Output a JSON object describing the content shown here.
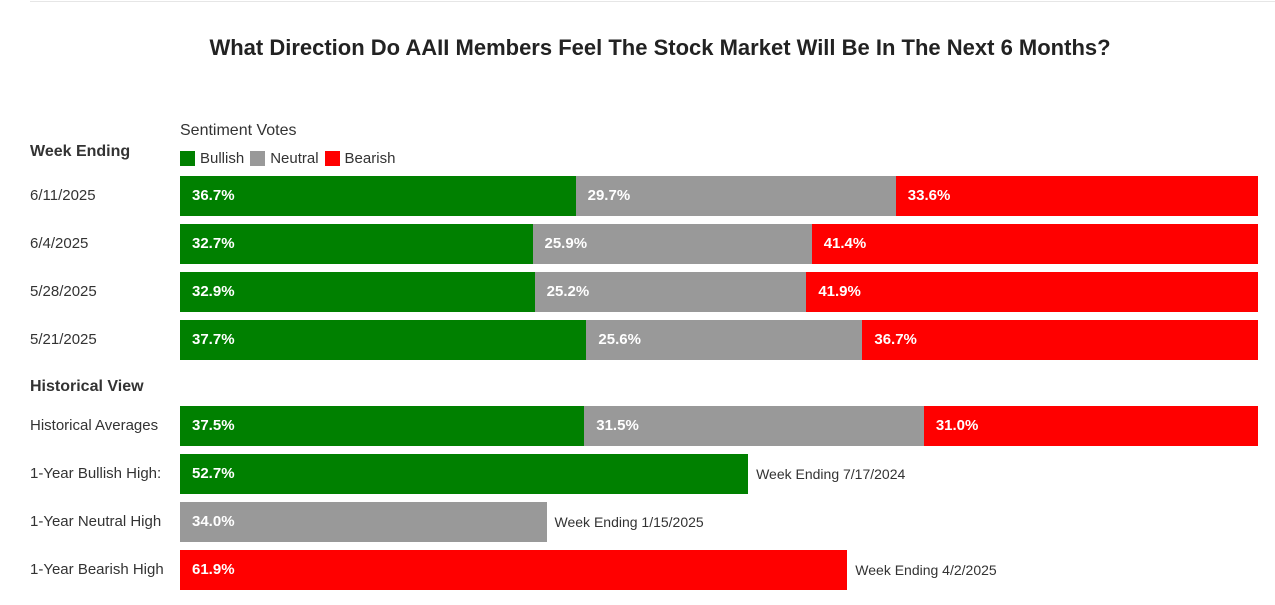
{
  "title": "What Direction Do AAII Members Feel The Stock Market Will Be In The Next 6 Months?",
  "legend_title": "Sentiment Votes",
  "legend": [
    {
      "label": "Bullish",
      "color": "#008000"
    },
    {
      "label": "Neutral",
      "color": "#999999"
    },
    {
      "label": "Bearish",
      "color": "#ff0000"
    }
  ],
  "section_weekly": "Week Ending",
  "section_historical": "Historical View",
  "colors": {
    "bullish": "#008000",
    "neutral": "#999999",
    "bearish": "#ff0000"
  },
  "chart_data": {
    "type": "bar",
    "stacked": true,
    "orientation": "horizontal",
    "weekly": [
      {
        "label": "6/11/2025",
        "bullish": 36.7,
        "neutral": 29.7,
        "bearish": 33.6
      },
      {
        "label": "6/4/2025",
        "bullish": 32.7,
        "neutral": 25.9,
        "bearish": 41.4
      },
      {
        "label": "5/28/2025",
        "bullish": 32.9,
        "neutral": 25.2,
        "bearish": 41.9
      },
      {
        "label": "5/21/2025",
        "bullish": 37.7,
        "neutral": 25.6,
        "bearish": 36.7
      }
    ],
    "historical_averages": {
      "label": "Historical Averages",
      "bullish": 37.5,
      "neutral": 31.5,
      "bearish": 31.0
    },
    "highs": [
      {
        "label": "1-Year Bullish High:",
        "series": "bullish",
        "value": 52.7,
        "note": "Week Ending 7/17/2024"
      },
      {
        "label": "1-Year Neutral High",
        "series": "neutral",
        "value": 34.0,
        "note": "Week Ending 1/15/2025"
      },
      {
        "label": "1-Year Bearish High",
        "series": "bearish",
        "value": 61.9,
        "note": "Week Ending 4/2/2025"
      }
    ]
  }
}
